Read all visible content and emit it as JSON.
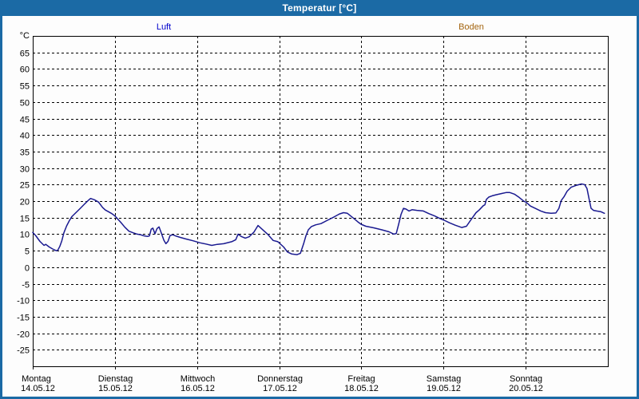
{
  "window": {
    "title": "Temperatur [°C]",
    "titlebar_color": "#1b6aa5",
    "border_color": "#1b6aa5"
  },
  "legend": {
    "items": [
      {
        "label": "Luft",
        "color": "#0000cc"
      },
      {
        "label": "Boden",
        "color": "#a3640f"
      }
    ]
  },
  "chart_data": {
    "type": "line",
    "title": "Temperatur [°C]",
    "ylabel": "°C",
    "ylim": [
      -30,
      70
    ],
    "y_tick_step": 5,
    "y_labeled_ticks_from": -25,
    "y_labeled_ticks_to": 65,
    "grid": "dashed",
    "legend_position": "top",
    "x_unit": "hours since 14.05.2012 00:00",
    "x_ticks": [
      {
        "hour": 0,
        "label": "Montag",
        "date": "14.05.12"
      },
      {
        "hour": 24,
        "label": "Dienstag",
        "date": "15.05.12"
      },
      {
        "hour": 48,
        "label": "Mittwoch",
        "date": "16.05.12"
      },
      {
        "hour": 72,
        "label": "Donnerstag",
        "date": "17.05.12"
      },
      {
        "hour": 96,
        "label": "Freitag",
        "date": "18.05.12"
      },
      {
        "hour": 120,
        "label": "Samstag",
        "date": "19.05.12"
      },
      {
        "hour": 144,
        "label": "Sonntag",
        "date": "20.05.12"
      }
    ],
    "series": [
      {
        "name": "Luft",
        "color": "#1a1a90",
        "points": [
          [
            0,
            10.5
          ],
          [
            0.9,
            9.5
          ],
          [
            2.1,
            7.8
          ],
          [
            3.3,
            6.6
          ],
          [
            3.8,
            6.9
          ],
          [
            4.8,
            6.1
          ],
          [
            5.8,
            5.5
          ],
          [
            6.8,
            5.0
          ],
          [
            7.3,
            5.1
          ],
          [
            7.9,
            6.3
          ],
          [
            8.5,
            8.0
          ],
          [
            9.1,
            10.4
          ],
          [
            9.9,
            12.5
          ],
          [
            10.7,
            14.1
          ],
          [
            11.4,
            15.3
          ],
          [
            12.6,
            16.5
          ],
          [
            13.8,
            17.7
          ],
          [
            14.9,
            18.9
          ],
          [
            16.1,
            20.1
          ],
          [
            16.9,
            20.8
          ],
          [
            18.0,
            20.4
          ],
          [
            19.2,
            19.7
          ],
          [
            20.4,
            18.1
          ],
          [
            21.2,
            17.3
          ],
          [
            21.9,
            16.9
          ],
          [
            23.1,
            16.2
          ],
          [
            24.0,
            15.5
          ],
          [
            25.7,
            13.6
          ],
          [
            26.9,
            12.1
          ],
          [
            28.1,
            10.9
          ],
          [
            29.3,
            10.4
          ],
          [
            30.5,
            10.0
          ],
          [
            31.5,
            9.8
          ],
          [
            32.5,
            9.5
          ],
          [
            33.5,
            9.3
          ],
          [
            34.1,
            9.5
          ],
          [
            34.6,
            11.5
          ],
          [
            35.1,
            11.8
          ],
          [
            35.7,
            10.1
          ],
          [
            36.3,
            11.7
          ],
          [
            36.9,
            12.2
          ],
          [
            37.5,
            10.5
          ],
          [
            38.3,
            8.2
          ],
          [
            38.9,
            7.1
          ],
          [
            39.5,
            7.8
          ],
          [
            40.1,
            9.6
          ],
          [
            40.9,
            9.8
          ],
          [
            41.9,
            9.4
          ],
          [
            43.1,
            9.0
          ],
          [
            44.9,
            8.5
          ],
          [
            46.8,
            8.0
          ],
          [
            48.8,
            7.4
          ],
          [
            50.6,
            7.0
          ],
          [
            52.3,
            6.6
          ],
          [
            53.9,
            6.9
          ],
          [
            55.8,
            7.1
          ],
          [
            58.1,
            7.7
          ],
          [
            59.3,
            8.3
          ],
          [
            60.0,
            10.0
          ],
          [
            60.9,
            9.3
          ],
          [
            62.1,
            8.8
          ],
          [
            63.2,
            9.2
          ],
          [
            64.6,
            10.6
          ],
          [
            65.8,
            12.6
          ],
          [
            67.0,
            11.5
          ],
          [
            68.6,
            10.0
          ],
          [
            70.2,
            8.1
          ],
          [
            71.6,
            7.7
          ],
          [
            73.3,
            6.1
          ],
          [
            74.4,
            4.6
          ],
          [
            75.6,
            4.0
          ],
          [
            77.2,
            3.8
          ],
          [
            78.2,
            4.2
          ],
          [
            79.1,
            7.0
          ],
          [
            79.8,
            9.5
          ],
          [
            80.5,
            11.3
          ],
          [
            81.4,
            12.3
          ],
          [
            82.6,
            12.8
          ],
          [
            84.2,
            13.2
          ],
          [
            86.1,
            14.2
          ],
          [
            88.0,
            15.2
          ],
          [
            89.6,
            16.1
          ],
          [
            90.8,
            16.5
          ],
          [
            91.9,
            16.3
          ],
          [
            93.6,
            14.9
          ],
          [
            95.0,
            13.7
          ],
          [
            95.9,
            13.0
          ],
          [
            97.3,
            12.4
          ],
          [
            99.6,
            11.9
          ],
          [
            102.0,
            11.3
          ],
          [
            104.1,
            10.7
          ],
          [
            105.5,
            10.0
          ],
          [
            106.2,
            10.2
          ],
          [
            106.9,
            13.0
          ],
          [
            107.6,
            16.0
          ],
          [
            108.3,
            17.8
          ],
          [
            109.0,
            17.6
          ],
          [
            109.9,
            17.0
          ],
          [
            110.8,
            17.4
          ],
          [
            112.2,
            17.2
          ],
          [
            114.1,
            17.0
          ],
          [
            115.7,
            16.2
          ],
          [
            117.4,
            15.5
          ],
          [
            119.0,
            14.7
          ],
          [
            120.2,
            14.2
          ],
          [
            121.8,
            13.4
          ],
          [
            123.4,
            12.7
          ],
          [
            125.3,
            12.0
          ],
          [
            126.7,
            12.4
          ],
          [
            128.1,
            14.5
          ],
          [
            129.5,
            16.5
          ],
          [
            130.4,
            17.3
          ],
          [
            131.6,
            18.6
          ],
          [
            132.1,
            18.9
          ],
          [
            132.5,
            20.5
          ],
          [
            133.2,
            21.2
          ],
          [
            134.2,
            21.6
          ],
          [
            135.3,
            21.9
          ],
          [
            137.0,
            22.3
          ],
          [
            138.4,
            22.6
          ],
          [
            139.3,
            22.6
          ],
          [
            140.7,
            22.1
          ],
          [
            142.1,
            21.1
          ],
          [
            143.3,
            20.1
          ],
          [
            144.2,
            19.6
          ],
          [
            145.4,
            18.5
          ],
          [
            146.8,
            17.8
          ],
          [
            148.4,
            17.0
          ],
          [
            149.8,
            16.5
          ],
          [
            151.4,
            16.3
          ],
          [
            152.8,
            16.4
          ],
          [
            153.7,
            17.8
          ],
          [
            154.4,
            20.2
          ],
          [
            155.2,
            21.3
          ],
          [
            156.1,
            23.0
          ],
          [
            157.3,
            24.2
          ],
          [
            158.9,
            24.8
          ],
          [
            160.3,
            25.2
          ],
          [
            161.2,
            25.0
          ],
          [
            161.9,
            23.8
          ],
          [
            162.6,
            20.2
          ],
          [
            163.1,
            17.8
          ],
          [
            163.8,
            17.2
          ],
          [
            164.7,
            17.0
          ],
          [
            165.9,
            16.8
          ],
          [
            167.0,
            16.3
          ]
        ]
      },
      {
        "name": "Boden",
        "color": "#a3640f",
        "points": []
      }
    ]
  }
}
